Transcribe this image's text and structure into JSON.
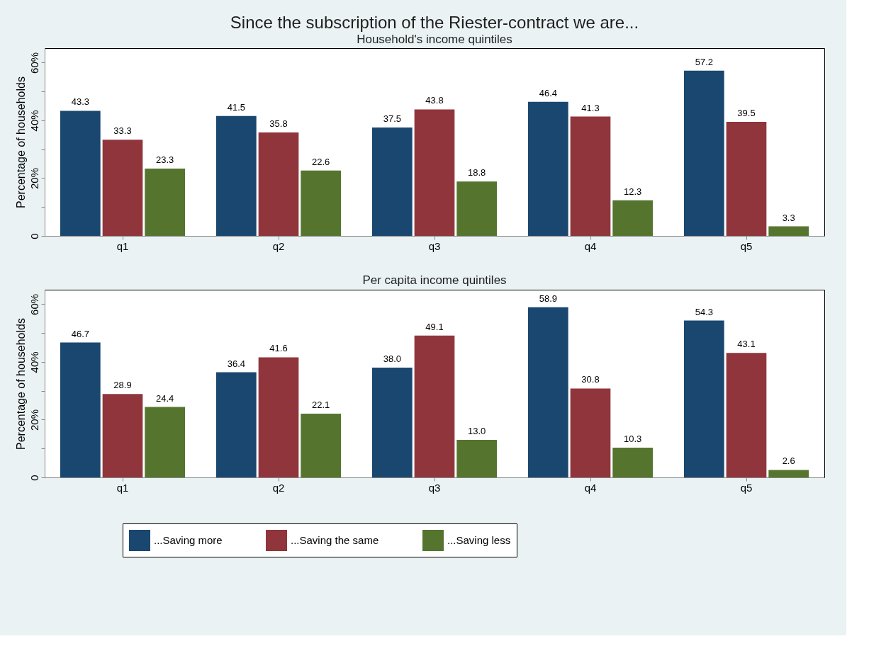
{
  "chart_data": [
    {
      "type": "bar",
      "title": "Since the subscription of the Riester-contract we are...",
      "subtitle": "Household's income quintiles",
      "ylabel": "Percentage of households",
      "categories": [
        "q1",
        "q2",
        "q3",
        "q4",
        "q5"
      ],
      "series": [
        {
          "color": "#1a476f",
          "values": [
            43.3,
            41.5,
            37.5,
            46.4,
            57.2
          ],
          "value_labels": [
            "43.3",
            "41.5",
            "37.5",
            "46.4",
            "57.2"
          ]
        },
        {
          "color": "#90353b",
          "values": [
            33.3,
            35.8,
            43.8,
            41.3,
            39.5
          ],
          "value_labels": [
            "33.3",
            "35.8",
            "43.8",
            "41.3",
            "39.5"
          ]
        },
        {
          "color": "#55752f",
          "values": [
            23.3,
            22.6,
            18.8,
            12.3,
            3.3
          ],
          "value_labels": [
            "23.3",
            "22.6",
            "18.8",
            "12.3",
            "3.3"
          ]
        }
      ],
      "ylim": [
        0,
        65
      ],
      "yticks": [
        {
          "value": 0,
          "label": "0"
        },
        {
          "value": 10,
          "label": null
        },
        {
          "value": 20,
          "label": "20%"
        },
        {
          "value": 30,
          "label": null
        },
        {
          "value": 40,
          "label": "40%"
        },
        {
          "value": 50,
          "label": null
        },
        {
          "value": 60,
          "label": "60%"
        }
      ],
      "grid": false
    },
    {
      "type": "bar",
      "title": "Per capita income quintiles",
      "ylabel": "Percentage of households",
      "categories": [
        "q1",
        "q2",
        "q3",
        "q4",
        "q5"
      ],
      "series": [
        {
          "name": "...Saving more",
          "color": "#1a476f",
          "values": [
            46.7,
            36.4,
            38.0,
            58.9,
            54.3
          ],
          "value_labels": [
            "46.7",
            "36.4",
            "38.0",
            "58.9",
            "54.3"
          ]
        },
        {
          "name": "...Saving the same",
          "color": "#90353b",
          "values": [
            28.9,
            41.6,
            49.1,
            30.8,
            43.1
          ],
          "value_labels": [
            "28.9",
            "41.6",
            "49.1",
            "30.8",
            "43.1"
          ]
        },
        {
          "name": "...Saving less",
          "color": "#55752f",
          "values": [
            24.4,
            22.1,
            13.0,
            10.3,
            2.6
          ],
          "value_labels": [
            "24.4",
            "22.1",
            "13.0",
            "10.3",
            "2.6"
          ]
        }
      ],
      "ylim": [
        0,
        65
      ],
      "yticks": [
        {
          "value": 0,
          "label": "0"
        },
        {
          "value": 10,
          "label": null
        },
        {
          "value": 20,
          "label": "20%"
        },
        {
          "value": 30,
          "label": null
        },
        {
          "value": 40,
          "label": "40%"
        },
        {
          "value": 50,
          "label": null
        },
        {
          "value": 60,
          "label": "60%"
        }
      ],
      "grid": false,
      "legend": "bottom"
    }
  ]
}
